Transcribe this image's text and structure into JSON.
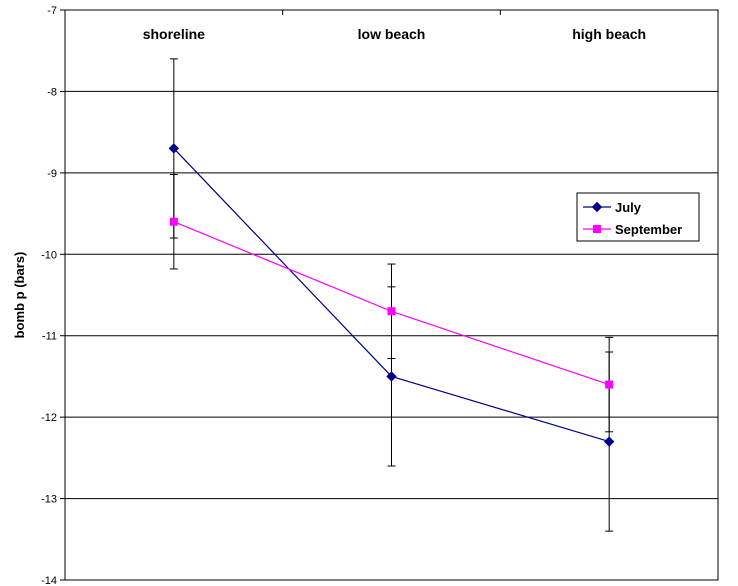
{
  "chart_data": {
    "type": "line",
    "categories": [
      "shoreline",
      "low beach",
      "high beach"
    ],
    "ylabel": "bomb p (bars)",
    "xlabel": "",
    "ylim": [
      -14,
      -7
    ],
    "yticks": [
      "-7",
      "-8",
      "-9",
      "-10",
      "-11",
      "-12",
      "-13",
      "-14"
    ],
    "grid": true,
    "legend_position": "right",
    "series": [
      {
        "name": "July",
        "color": "#00008B",
        "marker": "diamond",
        "values": [
          -8.7,
          -11.5,
          -12.3
        ],
        "error": [
          1.1,
          1.1,
          1.1
        ]
      },
      {
        "name": "September",
        "color": "#FF00FF",
        "marker": "square",
        "values": [
          -9.6,
          -10.7,
          -11.6
        ],
        "error": [
          0.58,
          0.58,
          0.58
        ]
      }
    ]
  }
}
